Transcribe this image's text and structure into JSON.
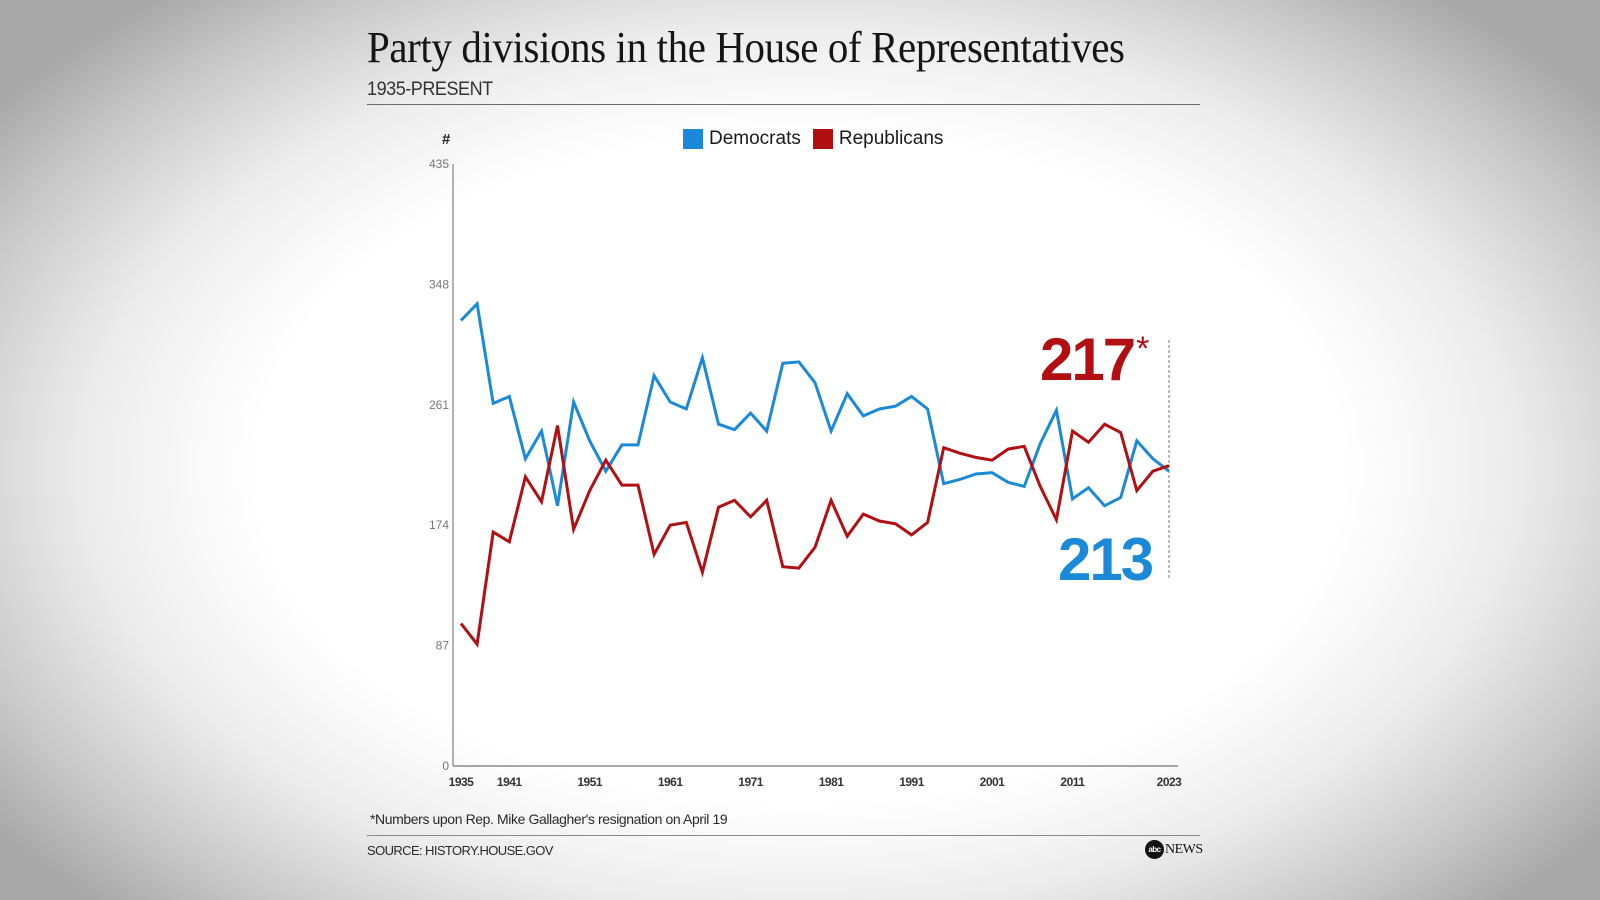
{
  "header": {
    "title": "Party divisions in the House of Representatives",
    "subtitle": "1935-PRESENT"
  },
  "legend": [
    {
      "label": "Democrats",
      "color": "#1a8ad8"
    },
    {
      "label": "Republicans",
      "color": "#b10f12"
    }
  ],
  "annotations": {
    "republican_current": "217",
    "republican_marker": "*",
    "democrat_current": "213"
  },
  "footer": {
    "footnote": "*Numbers upon Rep. Mike Gallagher's resignation on April 19",
    "source": "SOURCE: HISTORY.HOUSE.GOV",
    "logo_abc": "abc",
    "logo_news": "NEWS"
  },
  "chart_data": {
    "type": "line",
    "title": "Party divisions in the House of Representatives",
    "subtitle": "1935-PRESENT",
    "xlabel": "",
    "ylabel": "#",
    "ylim": [
      0,
      435
    ],
    "xlim": [
      1935,
      2023
    ],
    "yticks": [
      0,
      87,
      174,
      261,
      348,
      435
    ],
    "xticks": [
      1935,
      1941,
      1951,
      1961,
      1971,
      1981,
      1991,
      2001,
      2011,
      2023
    ],
    "grid": false,
    "legend_position": "top-center",
    "x": [
      1935,
      1937,
      1939,
      1941,
      1943,
      1945,
      1947,
      1949,
      1951,
      1953,
      1955,
      1957,
      1959,
      1961,
      1963,
      1965,
      1967,
      1969,
      1971,
      1973,
      1975,
      1977,
      1979,
      1981,
      1983,
      1985,
      1987,
      1989,
      1991,
      1993,
      1995,
      1997,
      1999,
      2001,
      2003,
      2005,
      2007,
      2009,
      2011,
      2013,
      2015,
      2017,
      2019,
      2021,
      2023
    ],
    "series": [
      {
        "name": "Democrats",
        "color": "#1a8ad8",
        "values": [
          322,
          334,
          262,
          267,
          222,
          242,
          188,
          263,
          235,
          213,
          232,
          232,
          282,
          263,
          258,
          295,
          247,
          243,
          255,
          242,
          291,
          292,
          277,
          242,
          269,
          253,
          258,
          260,
          267,
          258,
          204,
          207,
          211,
          212,
          205,
          202,
          233,
          257,
          193,
          201,
          188,
          194,
          235,
          222,
          213
        ]
      },
      {
        "name": "Republicans",
        "color": "#b10f12",
        "values": [
          103,
          88,
          169,
          162,
          209,
          191,
          246,
          171,
          199,
          221,
          203,
          203,
          153,
          174,
          176,
          140,
          187,
          192,
          180,
          192,
          144,
          143,
          158,
          192,
          166,
          182,
          177,
          175,
          167,
          176,
          230,
          226,
          223,
          221,
          229,
          231,
          202,
          178,
          242,
          234,
          247,
          241,
          199,
          213,
          217
        ]
      }
    ],
    "annotations": [
      {
        "text": "217*",
        "series": "Republicans",
        "x": 2023
      },
      {
        "text": "213",
        "series": "Democrats",
        "x": 2023
      }
    ]
  }
}
